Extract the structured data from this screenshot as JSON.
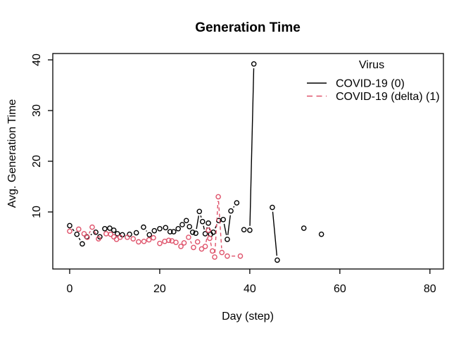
{
  "chart_data": {
    "type": "line",
    "title": "Generation Time",
    "xlabel": "Day (step)",
    "ylabel": "Avg. Generation Time",
    "x_ticks": [
      0,
      20,
      40,
      60,
      80
    ],
    "y_ticks": [
      10,
      20,
      30,
      40
    ],
    "xlim": [
      -3.75,
      83
    ],
    "ylim": [
      -1.25,
      41.25
    ],
    "grid": false,
    "marker": "open-circle",
    "legend": {
      "title": "Virus",
      "position": "top-right",
      "items": [
        {
          "label": "COVID-19 (0)",
          "color": "#000000",
          "linestyle": "solid"
        },
        {
          "label": "COVID-19 (delta) (1)",
          "color": "#DF536B",
          "linestyle": "dashed"
        }
      ]
    },
    "series": [
      {
        "name": "COVID-19 (0)",
        "color": "#000000",
        "linestyle": "solid",
        "runs": [
          [
            [
              0,
              7.3
            ],
            [
              1.6,
              5.6
            ],
            [
              2.8,
              3.7
            ],
            [
              3.8,
              5.1
            ],
            [
              5.8,
              6.0
            ],
            [
              6.7,
              5.1
            ],
            [
              7.8,
              6.7
            ],
            [
              8.9,
              6.8
            ],
            [
              9.8,
              6.4
            ],
            [
              10.6,
              5.7
            ],
            [
              11.7,
              5.5
            ],
            [
              13.3,
              5.6
            ],
            [
              14.8,
              5.9
            ],
            [
              16.4,
              7.0
            ],
            [
              17.7,
              5.5
            ],
            [
              18.8,
              6.3
            ],
            [
              20,
              6.7
            ],
            [
              21.3,
              6.9
            ],
            [
              22.3,
              6.1
            ],
            [
              23.1,
              6.1
            ],
            [
              24.1,
              6.7
            ],
            [
              25,
              7.5
            ],
            [
              25.9,
              8.3
            ],
            [
              26.6,
              7.1
            ],
            [
              27.3,
              6.0
            ],
            [
              28,
              5.8
            ],
            [
              28.8,
              10.1
            ],
            [
              29.5,
              8.1
            ],
            [
              30.1,
              5.7
            ],
            [
              30.8,
              7.8
            ],
            [
              31.3,
              5.6
            ],
            [
              31.9,
              6.0
            ],
            [
              33.1,
              8.3
            ],
            [
              34.1,
              8.5
            ],
            [
              35,
              4.6
            ],
            [
              35.8,
              10.2
            ],
            [
              37.1,
              11.8
            ]
          ],
          [
            [
              38.7,
              6.5
            ],
            [
              40,
              6.4
            ],
            [
              40.9,
              39.2
            ]
          ],
          [
            [
              45,
              10.9
            ],
            [
              46.1,
              0.5
            ]
          ],
          [
            [
              52,
              6.8
            ]
          ],
          [
            [
              55.9,
              5.6
            ]
          ]
        ]
      },
      {
        "name": "COVID-19 (delta) (1)",
        "color": "#DF536B",
        "linestyle": "dashed",
        "runs": [
          [
            [
              0,
              6.2
            ],
            [
              2,
              6.6
            ],
            [
              3.2,
              5.7
            ],
            [
              3.9,
              5.0
            ],
            [
              5,
              7.0
            ],
            [
              6.4,
              4.7
            ],
            [
              8.1,
              5.7
            ],
            [
              9.1,
              5.6
            ],
            [
              9.8,
              5.1
            ],
            [
              10.4,
              4.6
            ],
            [
              11.2,
              5.0
            ],
            [
              12.8,
              5.0
            ],
            [
              14.1,
              4.7
            ],
            [
              15.3,
              4.1
            ],
            [
              16.5,
              4.2
            ],
            [
              17.6,
              4.5
            ],
            [
              18.6,
              4.9
            ],
            [
              20,
              3.8
            ],
            [
              21.1,
              4.2
            ],
            [
              22,
              4.4
            ],
            [
              22.7,
              4.3
            ],
            [
              23.6,
              4.0
            ],
            [
              24.7,
              3.2
            ],
            [
              25.4,
              3.9
            ],
            [
              26.4,
              5.0
            ],
            [
              27.5,
              3.0
            ],
            [
              28.4,
              4.1
            ],
            [
              29.3,
              2.7
            ],
            [
              30.1,
              3.2
            ],
            [
              30.8,
              6.4
            ],
            [
              31.1,
              4.8
            ],
            [
              31.7,
              2.3
            ],
            [
              32.2,
              1.1
            ],
            [
              33,
              13.0
            ],
            [
              33.8,
              2.0
            ],
            [
              35,
              1.3
            ],
            [
              37.9,
              1.3
            ]
          ]
        ]
      }
    ]
  }
}
